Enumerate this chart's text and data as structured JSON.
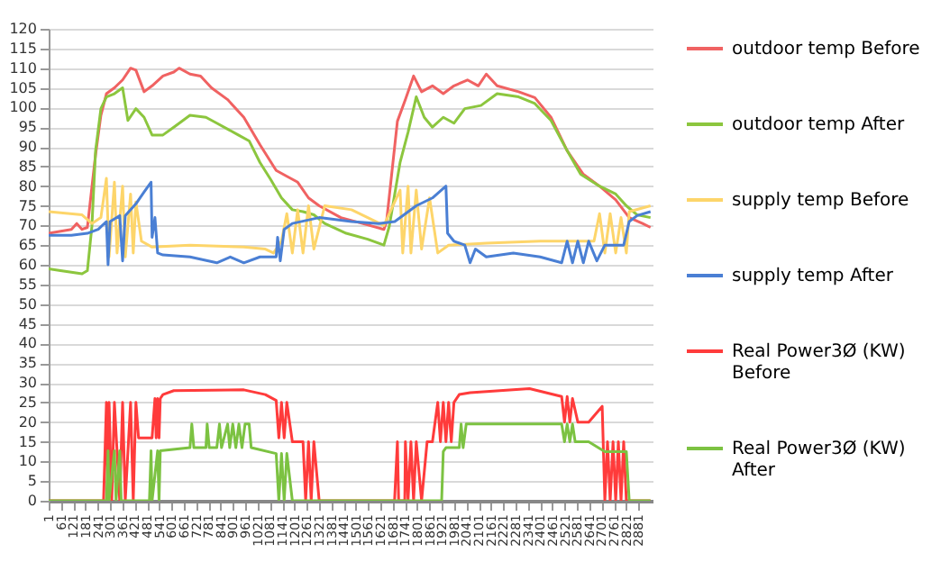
{
  "chart_data": {
    "type": "line",
    "xlim": [
      1,
      2950
    ],
    "xticks": [
      1,
      61,
      121,
      181,
      241,
      301,
      361,
      421,
      481,
      541,
      601,
      661,
      721,
      781,
      841,
      901,
      961,
      1021,
      1081,
      1141,
      1201,
      1261,
      1321,
      1381,
      1441,
      1501,
      1561,
      1621,
      1681,
      1741,
      1801,
      1861,
      1921,
      1981,
      2041,
      2101,
      2161,
      2221,
      2281,
      2341,
      2401,
      2461,
      2521,
      2581,
      2641,
      2701,
      2761,
      2821,
      2881
    ],
    "ylim": [
      0,
      120
    ],
    "yticks": [
      0,
      5,
      10,
      15,
      20,
      25,
      30,
      35,
      40,
      45,
      50,
      55,
      60,
      65,
      70,
      75,
      80,
      85,
      90,
      95,
      100,
      105,
      110,
      115,
      120
    ],
    "grid": "y",
    "legend": "right",
    "marker": "none",
    "line_style": "solid",
    "series": [
      {
        "name": "outdoor temp Before",
        "color": "#f06262",
        "x": [
          1,
          112,
          138,
          164,
          190,
          230,
          256,
          283,
          322,
          362,
          401,
          427,
          467,
          506,
          559,
          612,
          638,
          691,
          743,
          796,
          875,
          954,
          1033,
          1112,
          1164,
          1217,
          1270,
          1322,
          1428,
          1533,
          1638,
          1651,
          1704,
          1743,
          1783,
          1822,
          1875,
          1928,
          1980,
          2046,
          2099,
          2138,
          2191,
          2296,
          2375,
          2454,
          2533,
          2612,
          2691,
          2770,
          2836,
          2901,
          2940
        ],
        "values": [
          68,
          69,
          70.5,
          69,
          69.5,
          88,
          98,
          103.5,
          105,
          107,
          110,
          109.5,
          104,
          105.5,
          108,
          109,
          110,
          108.5,
          108,
          105,
          102,
          97.5,
          90.5,
          84,
          82.5,
          81,
          77,
          75,
          72,
          70.5,
          69,
          71,
          96.5,
          102,
          108,
          104,
          105.5,
          103.5,
          105.5,
          107,
          105.5,
          108.5,
          105.5,
          104,
          102.5,
          97.5,
          89,
          83,
          80,
          76.5,
          72,
          70.5,
          69.5
        ]
      },
      {
        "name": "outdoor temp After",
        "color": "#8cc63e",
        "x": [
          1,
          59,
          164,
          190,
          212,
          230,
          256,
          283,
          322,
          362,
          388,
          427,
          467,
          506,
          559,
          612,
          691,
          769,
          822,
          875,
          927,
          980,
          1033,
          1085,
          1138,
          1191,
          1243,
          1296,
          1349,
          1454,
          1559,
          1638,
          1664,
          1717,
          1756,
          1796,
          1835,
          1875,
          1928,
          1980,
          2033,
          2112,
          2191,
          2296,
          2375,
          2454,
          2533,
          2599,
          2691,
          2770,
          2822,
          2875,
          2940
        ],
        "values": [
          59,
          58.5,
          57.7,
          58.5,
          69.7,
          89,
          99.7,
          102.7,
          103.5,
          105,
          96.7,
          99.7,
          97.5,
          93,
          93,
          95,
          98,
          97.5,
          96,
          94.5,
          93,
          91.5,
          86,
          81.7,
          77,
          74,
          73.5,
          72.7,
          70.5,
          68,
          66.5,
          65,
          69.7,
          86,
          93.7,
          102.7,
          97.5,
          95,
          97.5,
          96,
          99.7,
          100.5,
          103.5,
          102.7,
          101,
          96.7,
          89,
          83,
          80,
          78,
          75,
          72.7,
          72
        ]
      },
      {
        "name": "supply temp Before",
        "color": "#fdd56a",
        "x": [
          1,
          164,
          212,
          256,
          283,
          296,
          322,
          335,
          362,
          375,
          401,
          414,
          427,
          454,
          506,
          691,
          954,
          1059,
          1099,
          1138,
          1164,
          1191,
          1217,
          1243,
          1270,
          1296,
          1349,
          1480,
          1638,
          1717,
          1730,
          1756,
          1770,
          1796,
          1822,
          1861,
          1901,
          1954,
          2138,
          2401,
          2664,
          2691,
          2717,
          2743,
          2770,
          2796,
          2822,
          2836,
          2940
        ],
        "values": [
          73.5,
          72.7,
          70.5,
          72,
          82,
          62,
          81,
          63,
          80,
          62,
          78,
          63,
          76,
          66,
          64.5,
          65,
          64.5,
          64,
          63,
          66,
          73,
          63,
          74,
          63,
          75,
          64,
          75,
          74,
          70,
          79,
          63,
          80,
          63,
          79,
          64,
          77,
          63,
          65,
          65.5,
          66,
          66,
          73,
          63,
          73,
          63,
          72,
          63,
          73.5,
          75
        ]
      },
      {
        "name": "supply temp After",
        "color": "#4a7fd4",
        "x": [
          1,
          112,
          190,
          243,
          283,
          291,
          301,
          348,
          362,
          375,
          427,
          467,
          501,
          506,
          520,
          533,
          559,
          691,
          822,
          888,
          954,
          1033,
          1112,
          1119,
          1132,
          1151,
          1191,
          1322,
          1480,
          1612,
          1691,
          1796,
          1875,
          1941,
          1949,
          1980,
          2033,
          2059,
          2085,
          2138,
          2270,
          2401,
          2506,
          2533,
          2559,
          2585,
          2612,
          2638,
          2678,
          2717,
          2809,
          2836,
          2875,
          2940
        ],
        "values": [
          67.5,
          67.5,
          68,
          69,
          71,
          60,
          71,
          72.5,
          61,
          72.5,
          75.5,
          78.5,
          81,
          67,
          72,
          63,
          62.5,
          62,
          60.5,
          62,
          60.5,
          62,
          62,
          67,
          61,
          69,
          70.5,
          72,
          71,
          70.5,
          71,
          75,
          77,
          80,
          68,
          66,
          65,
          60.5,
          64,
          62,
          63,
          62,
          60.5,
          66,
          60.5,
          66,
          60.5,
          66,
          61,
          65,
          65,
          71,
          72.5,
          73.5
        ]
      },
      {
        "name": "Real Power3Ø (KW) Before",
        "color": "#ff3b3b",
        "x": [
          1,
          269,
          283,
          290,
          296,
          309,
          322,
          348,
          362,
          375,
          401,
          414,
          427,
          440,
          506,
          520,
          526,
          533,
          540,
          546,
          559,
          612,
          954,
          1059,
          1112,
          1125,
          1138,
          1151,
          1164,
          1191,
          1243,
          1256,
          1270,
          1283,
          1296,
          1322,
          1690,
          1704,
          1710,
          1740,
          1743,
          1756,
          1770,
          1783,
          1796,
          1822,
          1849,
          1875,
          1901,
          1914,
          1928,
          1941,
          1954,
          1967,
          1980,
          2006,
          2059,
          2349,
          2506,
          2520,
          2533,
          2546,
          2559,
          2585,
          2638,
          2704,
          2717,
          2730,
          2743,
          2757,
          2770,
          2783,
          2796,
          2809,
          2822,
          2940
        ],
        "values": [
          0,
          0,
          25,
          0,
          25,
          0,
          25,
          0,
          25,
          0,
          25,
          0,
          25,
          16,
          16,
          26,
          16,
          26,
          16,
          26,
          27,
          28,
          28.2,
          27,
          25.5,
          16,
          25,
          16,
          25,
          15,
          15,
          0,
          15,
          0,
          15,
          0,
          0,
          15,
          0,
          0,
          15,
          0,
          15,
          0,
          15,
          0,
          15,
          15,
          25,
          15,
          25,
          15,
          25,
          15,
          25,
          27,
          27.5,
          28.5,
          26.5,
          20,
          26.5,
          20,
          26,
          20,
          20,
          24,
          0,
          15,
          0,
          15,
          0,
          15,
          0,
          15,
          0,
          0
        ]
      },
      {
        "name": "Real Power3Ø (KW) After",
        "color": "#7cc242",
        "x": [
          1,
          283,
          291,
          296,
          322,
          330,
          348,
          355,
          493,
          501,
          506,
          533,
          540,
          546,
          691,
          700,
          710,
          769,
          775,
          785,
          822,
          835,
          845,
          875,
          885,
          900,
          915,
          930,
          945,
          960,
          980,
          990,
          1112,
          1125,
          1138,
          1151,
          1164,
          1191,
          1920,
          1928,
          1941,
          2006,
          2015,
          2025,
          2040,
          2085,
          2506,
          2520,
          2533,
          2546,
          2559,
          2572,
          2638,
          2717,
          2822,
          2836,
          2940
        ],
        "values": [
          0,
          0,
          12.7,
          0,
          12.7,
          0,
          12.7,
          0,
          0,
          12.7,
          0,
          12.7,
          0,
          12.7,
          13.5,
          19.5,
          13.5,
          13.5,
          19.5,
          13.5,
          13.5,
          19.5,
          13.5,
          19.5,
          13.5,
          19.5,
          13.5,
          19.5,
          13.5,
          19.5,
          19.5,
          13.5,
          12,
          0,
          12,
          0,
          12,
          0,
          0,
          12.5,
          13.5,
          13.5,
          19.5,
          13.5,
          19.5,
          19.5,
          19.5,
          15,
          19.5,
          15,
          19.5,
          15,
          15,
          12.5,
          12.5,
          0,
          0
        ]
      }
    ]
  }
}
